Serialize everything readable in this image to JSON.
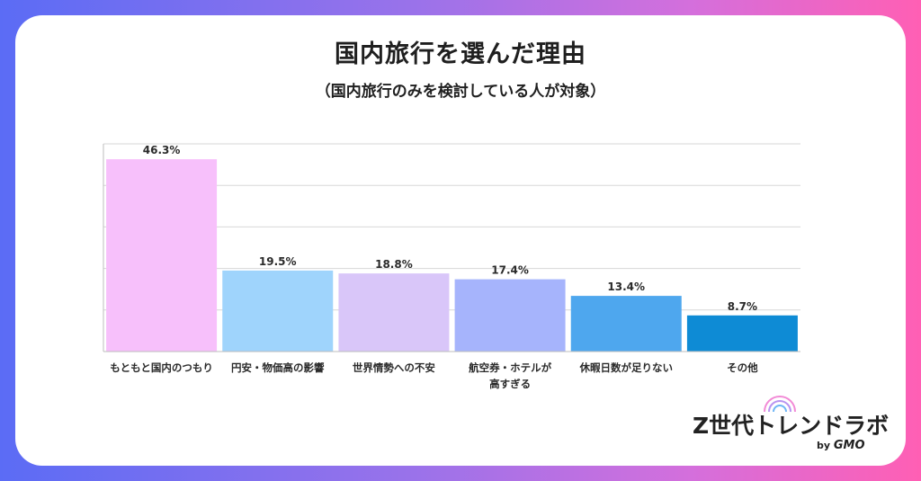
{
  "title": "国内旅行を選んだ理由",
  "subtitle": "（国内旅行のみを検討している人が対象）",
  "logo": {
    "text": "Z世代トレンドラボ",
    "by": "by",
    "brand": "GMO"
  },
  "colors": {
    "bars": [
      "#f7c0fb",
      "#9fd4fc",
      "#d9c6f9",
      "#a6b4fc",
      "#4ea7ee",
      "#0e8bd5"
    ],
    "grid": "#d7d7d7",
    "axis": "#bcbcbc"
  },
  "chart_data": {
    "type": "bar",
    "categories": [
      [
        "もともと国内のつもり"
      ],
      [
        "円安・物価高の影響"
      ],
      [
        "世界情勢への不安"
      ],
      [
        "航空券・ホテルが",
        "高すぎる"
      ],
      [
        "休暇日数が足りない"
      ],
      [
        "その他"
      ]
    ],
    "values": [
      46.3,
      19.5,
      18.8,
      17.4,
      13.4,
      8.7
    ],
    "value_labels": [
      "46.3%",
      "19.5%",
      "18.8%",
      "17.4%",
      "13.4%",
      "8.7%"
    ],
    "ylim": [
      0,
      50
    ],
    "grid": true
  }
}
